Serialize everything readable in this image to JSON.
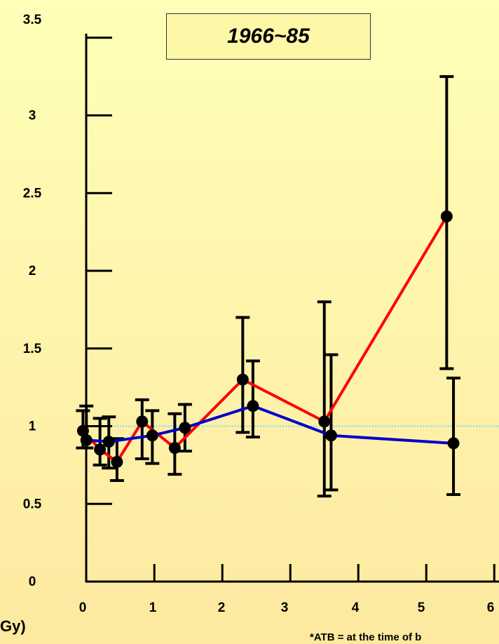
{
  "chart_data": {
    "type": "line",
    "title": "1966~85",
    "xlabel": "Gy)",
    "footnote": "*ATB = at the time of b",
    "xlim": [
      -0.05,
      6.3
    ],
    "ylim": [
      0,
      3.5
    ],
    "x_ticks": [
      0,
      1,
      2,
      3,
      4,
      5,
      6
    ],
    "y_ticks": [
      0,
      0.5,
      1,
      1.5,
      2,
      2.5,
      3,
      3.5
    ],
    "y_tick_labels": [
      "0",
      "0.5",
      "1",
      "1.5",
      "2",
      "2.5",
      "3",
      "3.5"
    ],
    "x_tick_labels": [
      "0",
      "1",
      "2",
      "3",
      "4",
      "5",
      "6"
    ],
    "reference_line": {
      "y": 1.0,
      "color": "#80d8f0"
    },
    "series": [
      {
        "color": "#ff0000",
        "points": [
          {
            "x": -0.05,
            "y": 0.97,
            "lo": 0.86,
            "hi": 1.1
          },
          {
            "x": 0.2,
            "y": 0.85,
            "lo": 0.75,
            "hi": 1.05
          },
          {
            "x": 0.45,
            "y": 0.77,
            "lo": 0.65,
            "hi": 0.92
          },
          {
            "x": 0.82,
            "y": 1.03,
            "lo": 0.79,
            "hi": 1.17
          },
          {
            "x": 1.3,
            "y": 0.86,
            "lo": 0.69,
            "hi": 1.08
          },
          {
            "x": 2.3,
            "y": 1.3,
            "lo": 0.96,
            "hi": 1.7
          },
          {
            "x": 3.5,
            "y": 1.03,
            "lo": 0.55,
            "hi": 1.8
          },
          {
            "x": 5.3,
            "y": 2.35,
            "lo": 1.37,
            "hi": 3.25
          }
        ]
      },
      {
        "color": "#0000c8",
        "points": [
          {
            "x": 0.0,
            "y": 0.91,
            "lo": 0.86,
            "hi": 1.13
          },
          {
            "x": 0.33,
            "y": 0.9,
            "lo": 0.73,
            "hi": 1.06
          },
          {
            "x": 0.97,
            "y": 0.94,
            "lo": 0.76,
            "hi": 1.1
          },
          {
            "x": 1.45,
            "y": 0.99,
            "lo": 0.84,
            "hi": 1.14
          },
          {
            "x": 2.45,
            "y": 1.13,
            "lo": 0.93,
            "hi": 1.42
          },
          {
            "x": 3.6,
            "y": 0.94,
            "lo": 0.59,
            "hi": 1.46
          },
          {
            "x": 5.4,
            "y": 0.89,
            "lo": 0.56,
            "hi": 1.31
          }
        ]
      }
    ]
  }
}
